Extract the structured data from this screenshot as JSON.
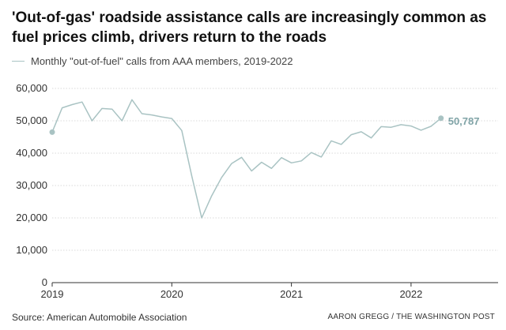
{
  "title": "'Out-of-gas' roadside assistance calls are increasingly common as fuel prices climb, drivers return to the roads",
  "source": "Source: American Automobile Association",
  "credit": "AARON GREGG / THE WASHINGTON POST",
  "chart_data": {
    "type": "line",
    "series": [
      {
        "name": "Monthly \"out-of-fuel\" calls from AAA members, 2019-2022",
        "color": "#a9c3c3",
        "x": [
          "2019-01",
          "2019-02",
          "2019-03",
          "2019-04",
          "2019-05",
          "2019-06",
          "2019-07",
          "2019-08",
          "2019-09",
          "2019-10",
          "2019-11",
          "2019-12",
          "2020-01",
          "2020-02",
          "2020-03",
          "2020-04",
          "2020-05",
          "2020-06",
          "2020-07",
          "2020-08",
          "2020-09",
          "2020-10",
          "2020-11",
          "2020-12",
          "2021-01",
          "2021-02",
          "2021-03",
          "2021-04",
          "2021-05",
          "2021-06",
          "2021-07",
          "2021-08",
          "2021-09",
          "2021-10",
          "2021-11",
          "2021-12",
          "2022-01",
          "2022-02",
          "2022-03",
          "2022-04"
        ],
        "values": [
          46500,
          54000,
          55000,
          55800,
          50000,
          53800,
          53600,
          50000,
          56500,
          52200,
          51800,
          51200,
          50700,
          47000,
          33000,
          20000,
          26800,
          32500,
          36800,
          38700,
          34500,
          37200,
          35300,
          38600,
          37000,
          37600,
          40200,
          38800,
          43800,
          42700,
          45700,
          46600,
          44700,
          48200,
          48000,
          48800,
          48400,
          47100,
          48300,
          50787
        ]
      }
    ],
    "xticks": [
      "2019",
      "2020",
      "2021",
      "2022"
    ],
    "yticks": [
      "0",
      "10,000",
      "20,000",
      "30,000",
      "40,000",
      "50,000",
      "60,000"
    ],
    "ylim": [
      0,
      60000
    ],
    "grid": true,
    "end_label": "50,787",
    "endpoint_markers": true
  }
}
